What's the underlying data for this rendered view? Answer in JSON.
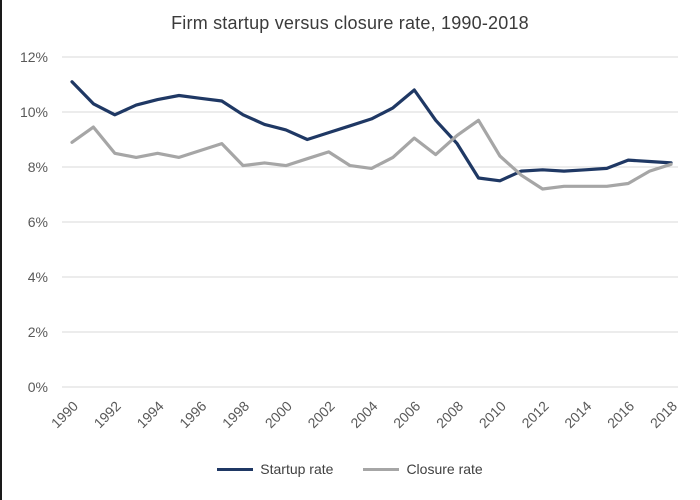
{
  "window": {
    "background": "#ffffff",
    "left_border_color": "#1a1a1a"
  },
  "chart_data": {
    "type": "line",
    "title": "Firm startup versus closure rate, 1990-2018",
    "xlabel": "",
    "ylabel": "",
    "years": [
      1990,
      1991,
      1992,
      1993,
      1994,
      1995,
      1996,
      1997,
      1998,
      1999,
      2000,
      2001,
      2002,
      2003,
      2004,
      2005,
      2006,
      2007,
      2008,
      2009,
      2010,
      2011,
      2012,
      2013,
      2014,
      2015,
      2016,
      2017,
      2018
    ],
    "x_tick_labels": [
      "1990",
      "1992",
      "1994",
      "1996",
      "1998",
      "2000",
      "2002",
      "2004",
      "2006",
      "2008",
      "2010",
      "2012",
      "2014",
      "2016",
      "2018"
    ],
    "y_ticks": [
      0,
      2,
      4,
      6,
      8,
      10,
      12
    ],
    "y_tick_labels": [
      "0%",
      "2%",
      "4%",
      "6%",
      "8%",
      "10%",
      "12%"
    ],
    "ylim": [
      0,
      12
    ],
    "grid": "horizontal",
    "legend_position": "bottom-center",
    "series": [
      {
        "name": "Startup rate",
        "color": "#1f3864",
        "values": [
          11.1,
          10.3,
          9.9,
          10.25,
          10.45,
          10.6,
          10.5,
          10.4,
          9.9,
          9.55,
          9.35,
          9.0,
          9.25,
          9.5,
          9.75,
          10.15,
          10.8,
          9.7,
          8.85,
          7.6,
          7.5,
          7.85,
          7.9,
          7.85,
          7.9,
          7.95,
          8.25,
          8.2,
          8.15
        ]
      },
      {
        "name": "Closure rate",
        "color": "#a6a6a6",
        "values": [
          8.9,
          9.45,
          8.5,
          8.35,
          8.5,
          8.35,
          8.6,
          8.85,
          8.05,
          8.15,
          8.05,
          8.3,
          8.55,
          8.05,
          7.95,
          8.35,
          9.05,
          8.45,
          9.15,
          9.7,
          8.4,
          7.7,
          7.2,
          7.3,
          7.3,
          7.3,
          7.4,
          7.85,
          8.1
        ]
      }
    ],
    "colors": {
      "gridline": "#d9d9d9",
      "axis_text": "#595959",
      "title_text": "#3b3b3b",
      "legend_text": "#404040"
    }
  }
}
